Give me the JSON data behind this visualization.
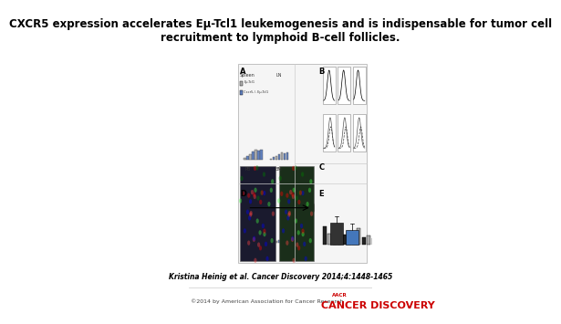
{
  "title": "CXCR5 expression accelerates Eμ-Tcl1 leukemogenesis and is indispensable for tumor cell\nrecruitment to lymphoid B-cell follicles.",
  "citation": "Kristina Heinig et al. Cancer Discovery 2014;4:1448-1465",
  "copyright": "©2014 by American Association for Cancer Research",
  "journal": "CANCER DISCOVERY",
  "aacr_text": "AACR",
  "bg_color": "#ffffff",
  "title_fontsize": 8.5,
  "citation_fontsize": 5.5,
  "copyright_fontsize": 4.5,
  "journal_fontsize": 8.0,
  "panel_bg": "#f5f5f5"
}
